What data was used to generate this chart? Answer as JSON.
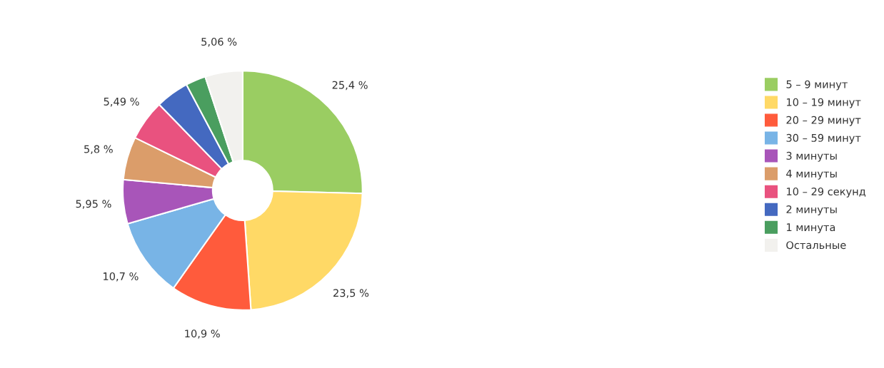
{
  "chart_data": {
    "type": "donut",
    "categories": [
      "5 – 9 минут",
      "10 – 19 минут",
      "20 – 29 минут",
      "30 – 59 минут",
      "3 минуты",
      "4 минуты",
      "10 – 29 секунд",
      "2 минуты",
      "1 минута",
      "Остальные"
    ],
    "values": [
      25.4,
      23.5,
      10.9,
      10.7,
      5.95,
      5.8,
      5.49,
      4.5,
      2.7,
      5.06
    ],
    "value_labels": [
      "25,4 %",
      "23,5 %",
      "10,9 %",
      "10,7 %",
      "5,95 %",
      "5,8 %",
      "5,49 %",
      null,
      null,
      "5,06 %"
    ],
    "colors": [
      "#9acd62",
      "#ffd966",
      "#ff5b3c",
      "#78b4e6",
      "#a855b9",
      "#db9d6a",
      "#e9527f",
      "#4469c0",
      "#4a9e5f",
      "#f2f1ee"
    ],
    "legend": "right"
  }
}
